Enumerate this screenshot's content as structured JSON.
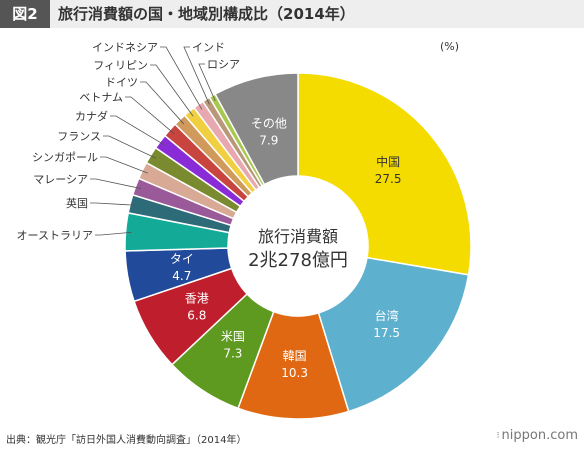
{
  "header": {
    "figure_label": "図2",
    "title": "旅行消費額の国・地域別構成比（2014年）"
  },
  "unit_label": "(%)",
  "chart_data": {
    "type": "pie",
    "title": "旅行消費額の国・地域別構成比（2014年）",
    "center_text": [
      "旅行消費額",
      "2兆278億円"
    ],
    "unit": "%",
    "slices": [
      {
        "label": "中国",
        "value": 27.5,
        "color": "#F5DC00",
        "label_color": "#333333"
      },
      {
        "label": "台湾",
        "value": 17.5,
        "color": "#5DB0CE",
        "label_color": "#ffffff"
      },
      {
        "label": "韓国",
        "value": 10.3,
        "color": "#E06812",
        "label_color": "#ffffff"
      },
      {
        "label": "米国",
        "value": 7.3,
        "color": "#5D9A1F",
        "label_color": "#ffffff"
      },
      {
        "label": "香港",
        "value": 6.8,
        "color": "#BF1E2C",
        "label_color": "#ffffff"
      },
      {
        "label": "タイ",
        "value": 4.7,
        "color": "#224A9A",
        "label_color": "#ffffff"
      },
      {
        "label": "オーストラリア",
        "value": 3.5,
        "color": "#14AA98"
      },
      {
        "label": "英国",
        "value": 1.7,
        "color": "#2D6B78"
      },
      {
        "label": "マレーシア",
        "value": 1.6,
        "color": "#9A5A9A"
      },
      {
        "label": "シンガポール",
        "value": 1.6,
        "color": "#D8A994"
      },
      {
        "label": "フランス",
        "value": 1.6,
        "color": "#7A8A2E"
      },
      {
        "label": "カナダ",
        "value": 1.4,
        "color": "#8A2BD8"
      },
      {
        "label": "ベトナム",
        "value": 1.4,
        "color": "#C8443E"
      },
      {
        "label": "ドイツ",
        "value": 1.2,
        "color": "#D09A5C"
      },
      {
        "label": "フィリピン",
        "value": 1.1,
        "color": "#F0D040"
      },
      {
        "label": "インドネシア",
        "value": 1.0,
        "color": "#E8A8B0"
      },
      {
        "label": "インド",
        "value": 0.7,
        "color": "#B89878"
      },
      {
        "label": "ロシア",
        "value": 0.6,
        "color": "#A8C850"
      },
      {
        "label": "その他",
        "value": 7.9,
        "color": "#888888",
        "label_color": "#ffffff"
      }
    ]
  },
  "footer": {
    "source": "出典：観光庁「訪日外国人消費動向調査」（2014年）",
    "brand": "nippon.com",
    "brand_icon": "nippon-com-dots-icon"
  }
}
